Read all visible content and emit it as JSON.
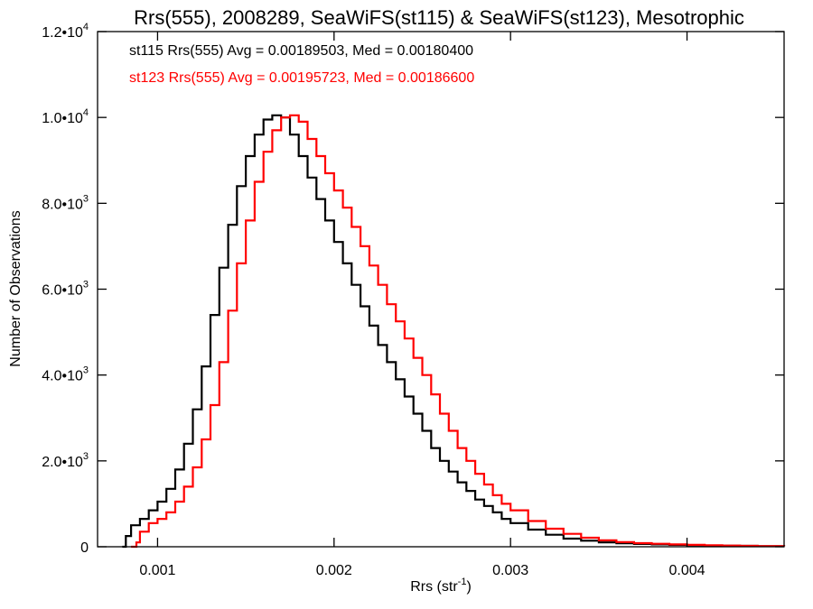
{
  "chart_data": {
    "type": "line",
    "title": "Rrs(555), 2008289, SeaWiFS(st115) & SeaWiFS(st123), Mesotrophic",
    "xlabel_base": "Rrs (str",
    "xlabel_sup": "-1",
    "xlabel_close": ")",
    "ylabel": "Number of Observations",
    "xlim": [
      0.00066,
      0.00455
    ],
    "ylim": [
      0,
      12000
    ],
    "xticks": [
      {
        "v": 0.001,
        "label": "0.001"
      },
      {
        "v": 0.002,
        "label": "0.002"
      },
      {
        "v": 0.003,
        "label": "0.003"
      },
      {
        "v": 0.004,
        "label": "0.004"
      }
    ],
    "yticks": [
      {
        "v": 0,
        "base": "0",
        "exp": ""
      },
      {
        "v": 2000,
        "base": "2.0•10",
        "exp": "3"
      },
      {
        "v": 4000,
        "base": "4.0•10",
        "exp": "3"
      },
      {
        "v": 6000,
        "base": "6.0•10",
        "exp": "3"
      },
      {
        "v": 8000,
        "base": "8.0•10",
        "exp": "3"
      },
      {
        "v": 10000,
        "base": "1.0•10",
        "exp": "4"
      },
      {
        "v": 12000,
        "base": "1.2•10",
        "exp": "4"
      }
    ],
    "series": [
      {
        "name": "st115",
        "color": "#000000",
        "annotation": "st115 Rrs(555) Avg = 0.00189503, Med = 0.00180400",
        "x": [
          0.0008,
          0.00082,
          0.00085,
          0.0009,
          0.00095,
          0.001,
          0.00105,
          0.0011,
          0.00115,
          0.0012,
          0.00125,
          0.0013,
          0.00135,
          0.0014,
          0.00145,
          0.0015,
          0.00155,
          0.0016,
          0.00165,
          0.0017,
          0.00175,
          0.0018,
          0.00185,
          0.0019,
          0.00195,
          0.002,
          0.00205,
          0.0021,
          0.00215,
          0.0022,
          0.00225,
          0.0023,
          0.00235,
          0.0024,
          0.00245,
          0.0025,
          0.00255,
          0.0026,
          0.00265,
          0.0027,
          0.00275,
          0.0028,
          0.00285,
          0.0029,
          0.00295,
          0.003,
          0.0031,
          0.0032,
          0.0033,
          0.0034,
          0.0035,
          0.0036,
          0.0037,
          0.0038,
          0.0039,
          0.004,
          0.0041,
          0.0042,
          0.0043,
          0.0044,
          0.00455
        ],
        "values": [
          0,
          250,
          500,
          650,
          850,
          1050,
          1350,
          1800,
          2400,
          3200,
          4200,
          5400,
          6500,
          7500,
          8400,
          9100,
          9600,
          9950,
          10050,
          10000,
          9600,
          9100,
          8600,
          8100,
          7600,
          7100,
          6600,
          6100,
          5600,
          5150,
          4700,
          4300,
          3900,
          3500,
          3100,
          2700,
          2300,
          2000,
          1750,
          1500,
          1300,
          1100,
          950,
          800,
          650,
          550,
          400,
          280,
          190,
          140,
          100,
          80,
          65,
          55,
          45,
          35,
          30,
          25,
          20,
          15,
          10
        ]
      },
      {
        "name": "st123",
        "color": "#ff0000",
        "annotation": "st123 Rrs(555) Avg = 0.00195723, Med = 0.00186600",
        "x": [
          0.00085,
          0.00088,
          0.0009,
          0.00095,
          0.001,
          0.00105,
          0.0011,
          0.00115,
          0.0012,
          0.00125,
          0.0013,
          0.00135,
          0.0014,
          0.00145,
          0.0015,
          0.00155,
          0.0016,
          0.00165,
          0.0017,
          0.00175,
          0.0018,
          0.00185,
          0.0019,
          0.00195,
          0.002,
          0.00205,
          0.0021,
          0.00215,
          0.0022,
          0.00225,
          0.0023,
          0.00235,
          0.0024,
          0.00245,
          0.0025,
          0.00255,
          0.0026,
          0.00265,
          0.0027,
          0.00275,
          0.0028,
          0.00285,
          0.0029,
          0.00295,
          0.003,
          0.0031,
          0.0032,
          0.0033,
          0.0034,
          0.0035,
          0.0036,
          0.0037,
          0.0038,
          0.0039,
          0.004,
          0.0041,
          0.0042,
          0.0043,
          0.0044,
          0.00455
        ],
        "values": [
          0,
          100,
          350,
          550,
          650,
          800,
          1050,
          1400,
          1850,
          2500,
          3300,
          4300,
          5500,
          6600,
          7600,
          8500,
          9200,
          9700,
          10000,
          10050,
          9900,
          9500,
          9100,
          8700,
          8300,
          7900,
          7450,
          7000,
          6550,
          6100,
          5650,
          5250,
          4850,
          4400,
          4000,
          3550,
          3100,
          2700,
          2300,
          2000,
          1700,
          1450,
          1200,
          1000,
          850,
          600,
          420,
          300,
          210,
          150,
          110,
          85,
          70,
          55,
          45,
          35,
          28,
          22,
          15,
          10
        ]
      }
    ]
  }
}
